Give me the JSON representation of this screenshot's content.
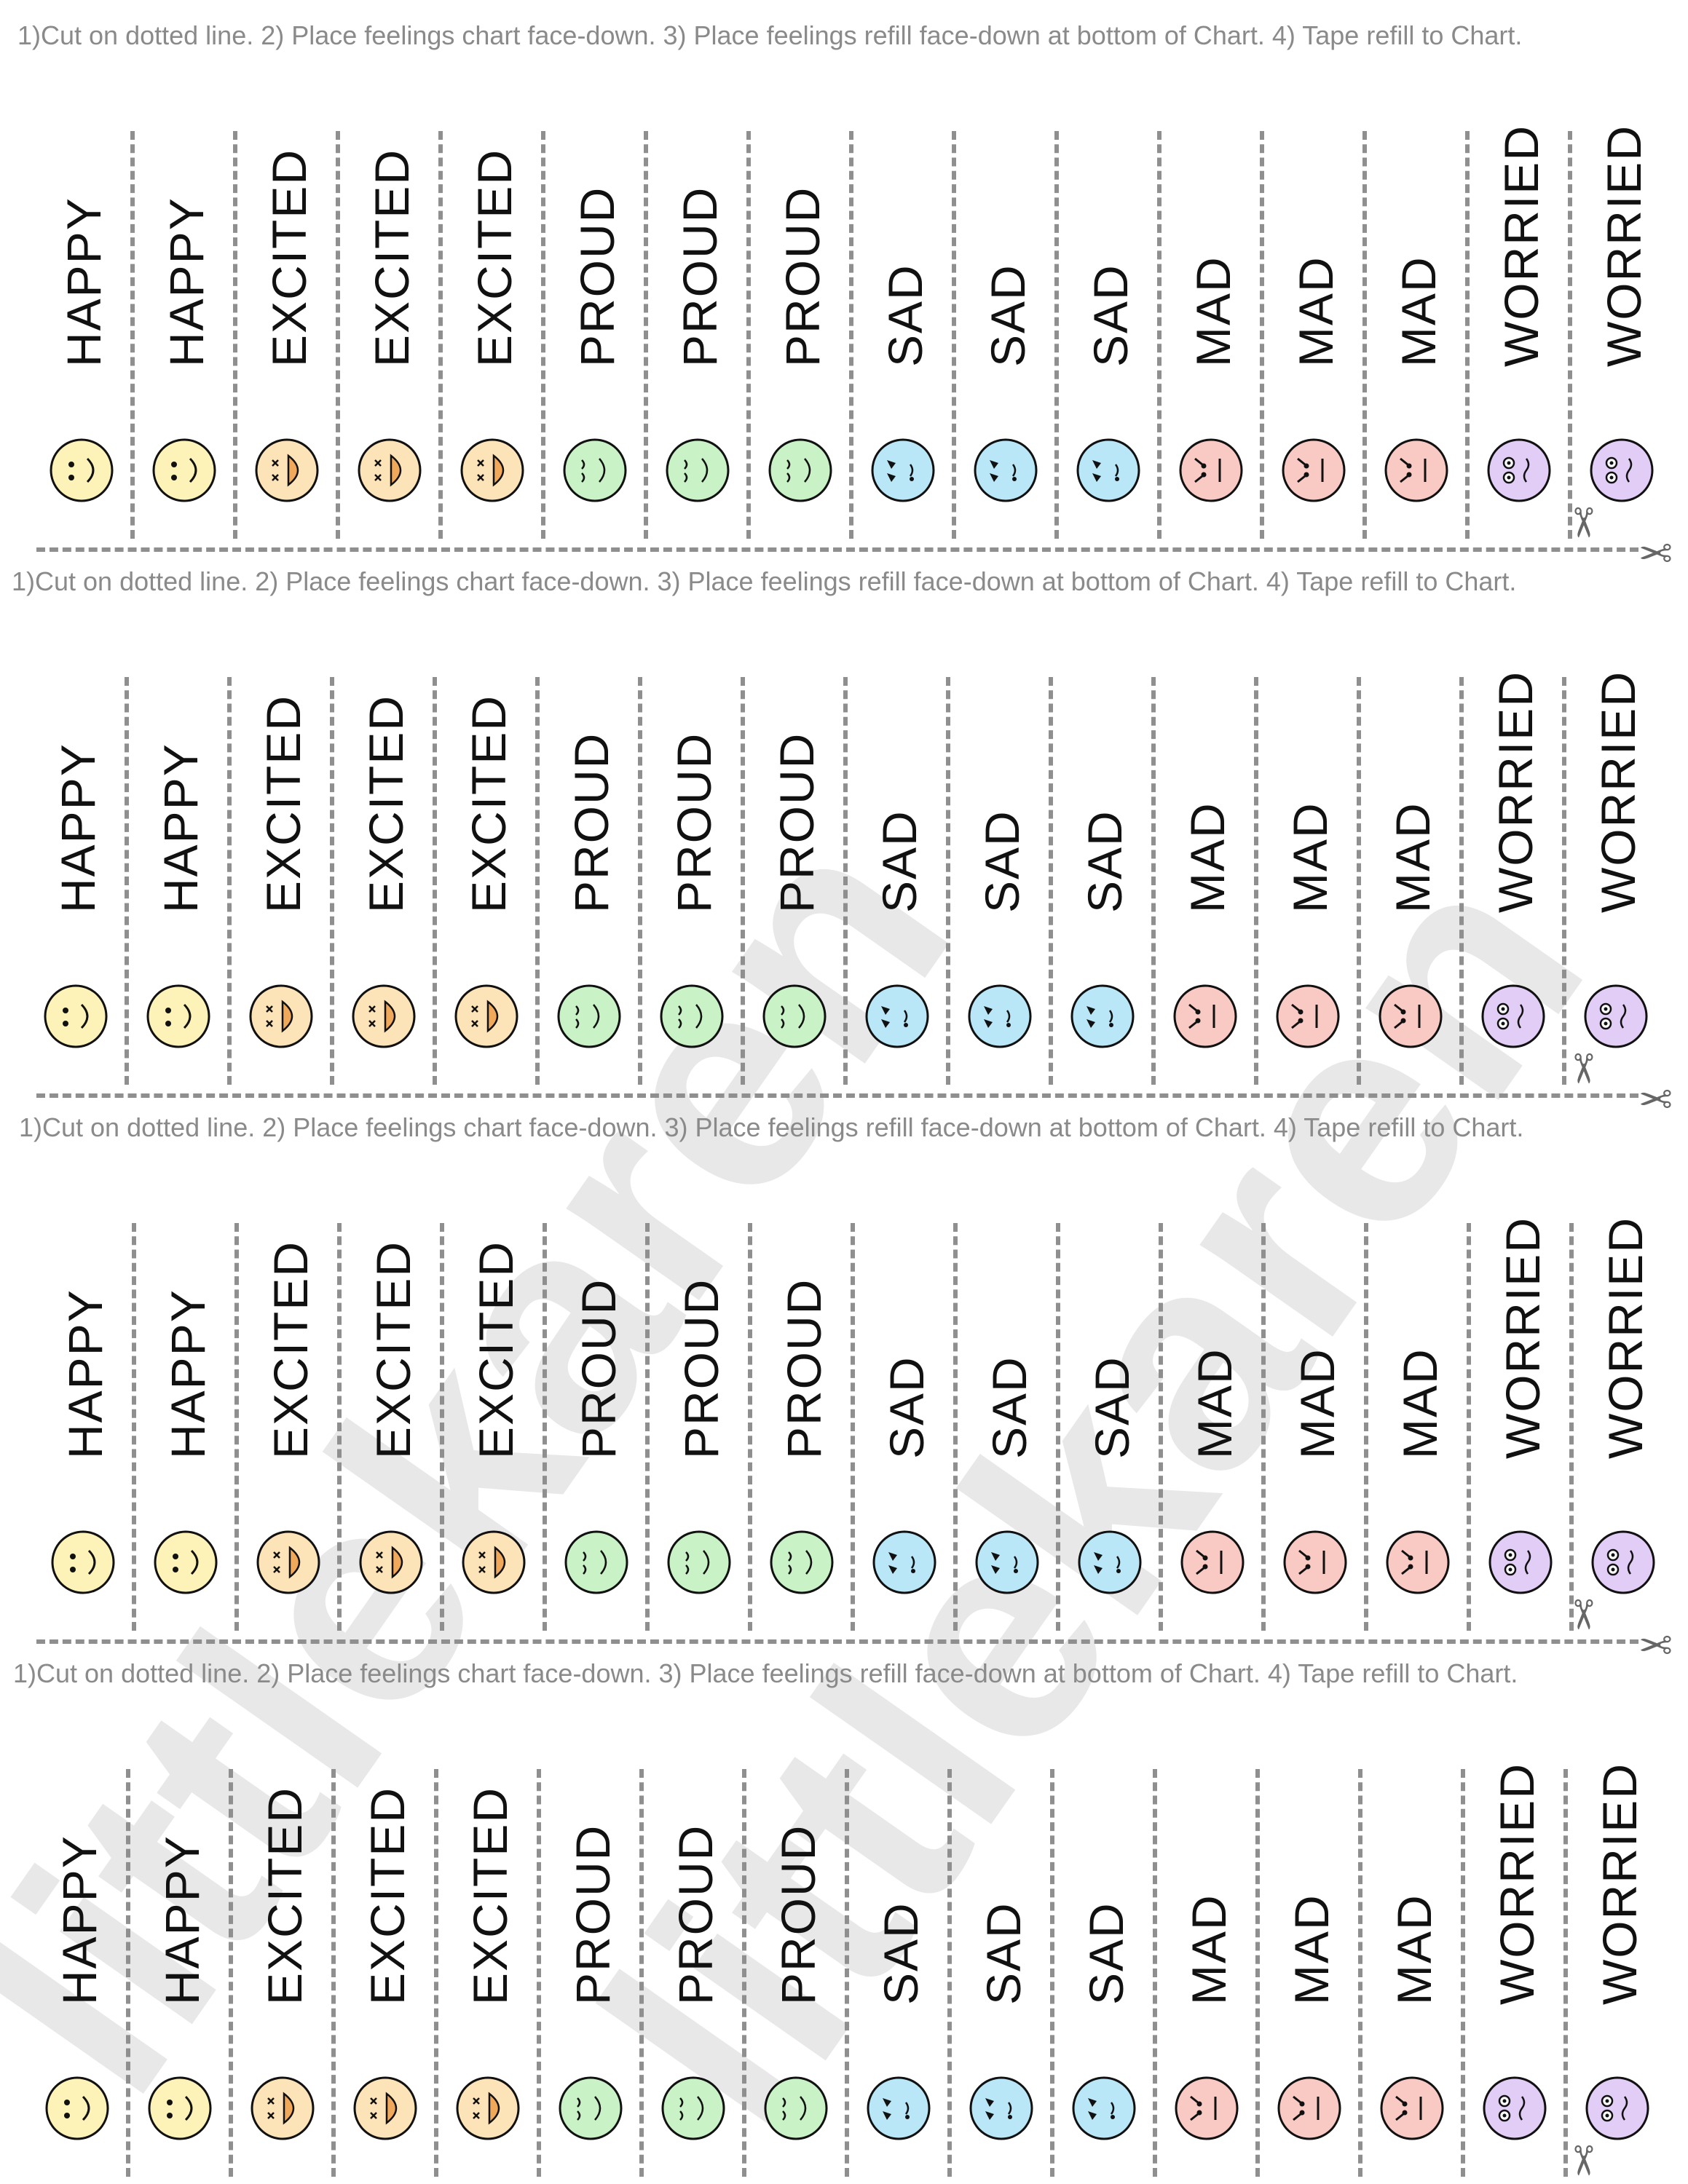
{
  "instructions_text": "1)Cut on dotted line. 2) Place feelings chart face-down. 3) Place feelings refill face-down at bottom of Chart. 4) Tape refill to Chart.",
  "watermark_text": "littlekaren",
  "strips": [
    {
      "label": "HAPPY",
      "emotion": "happy",
      "color": "#fdf3b8"
    },
    {
      "label": "HAPPY",
      "emotion": "happy",
      "color": "#fdf3b8"
    },
    {
      "label": "EXCITED",
      "emotion": "excited",
      "color": "#fde3b8"
    },
    {
      "label": "EXCITED",
      "emotion": "excited",
      "color": "#fde3b8"
    },
    {
      "label": "EXCITED",
      "emotion": "excited",
      "color": "#fde3b8"
    },
    {
      "label": "PROUD",
      "emotion": "proud",
      "color": "#c9f2c6"
    },
    {
      "label": "PROUD",
      "emotion": "proud",
      "color": "#c9f2c6"
    },
    {
      "label": "PROUD",
      "emotion": "proud",
      "color": "#c9f2c6"
    },
    {
      "label": "SAD",
      "emotion": "sad",
      "color": "#b9e7f7"
    },
    {
      "label": "SAD",
      "emotion": "sad",
      "color": "#b9e7f7"
    },
    {
      "label": "SAD",
      "emotion": "sad",
      "color": "#b9e7f7"
    },
    {
      "label": "MAD",
      "emotion": "mad",
      "color": "#f9c9c4"
    },
    {
      "label": "MAD",
      "emotion": "mad",
      "color": "#f9c9c4"
    },
    {
      "label": "MAD",
      "emotion": "mad",
      "color": "#f9c9c4"
    },
    {
      "label": "WORRIED",
      "emotion": "worried",
      "color": "#e2cdf7"
    },
    {
      "label": "WORRIED",
      "emotion": "worried",
      "color": "#e2cdf7"
    }
  ],
  "sheet_count": 4,
  "icons": {
    "scissors": "scissors-icon"
  },
  "colors": {
    "dash": "#8f8f8f",
    "instructions": "#8a8a8a",
    "label": "#111111"
  }
}
